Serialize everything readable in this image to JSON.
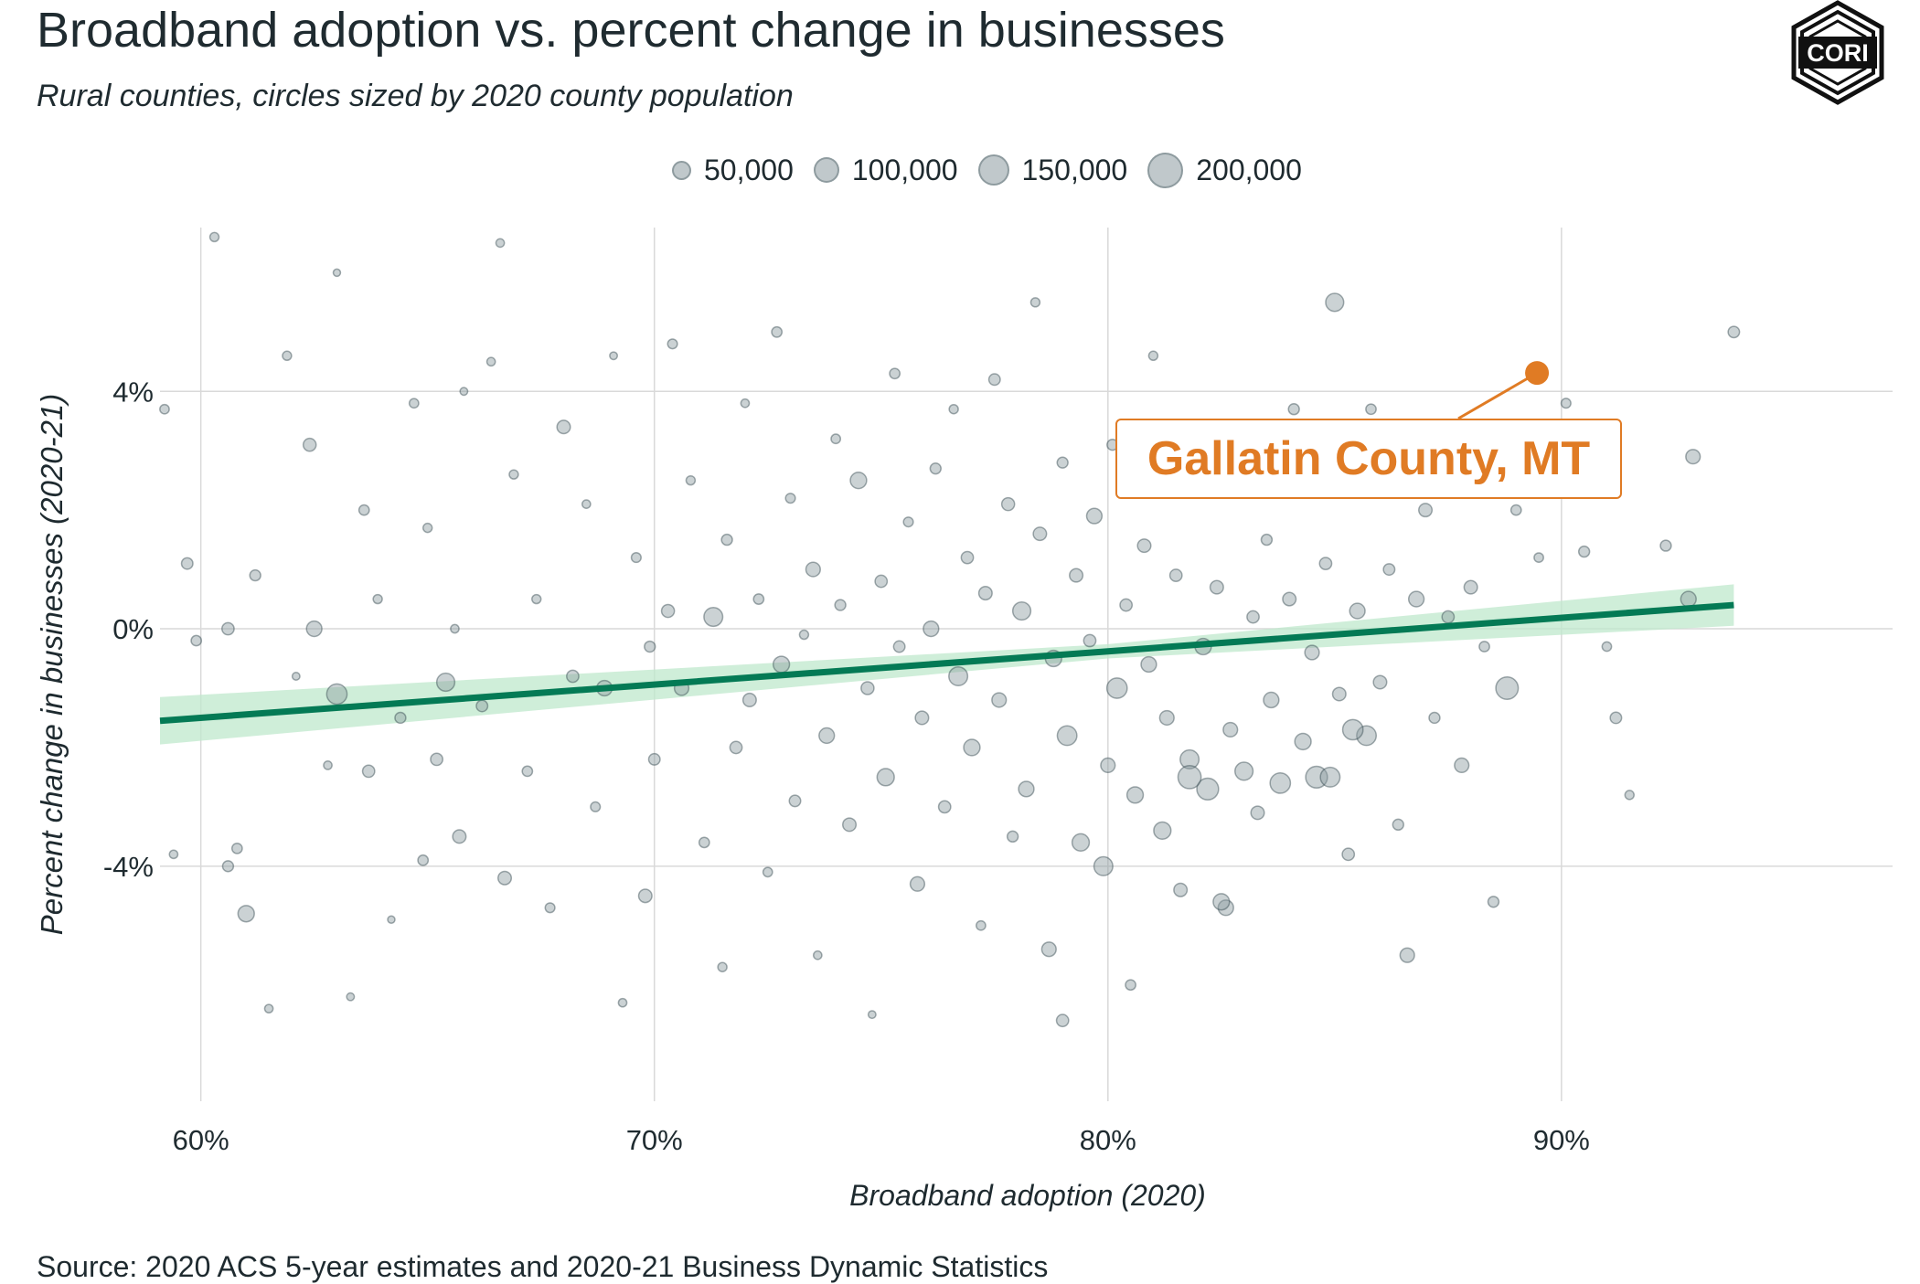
{
  "title": "Broadband adoption vs. percent change in businesses",
  "subtitle": "Rural counties, circles sized by 2020 county population",
  "source": "Source: 2020 ACS 5-year estimates and 2020-21 Business Dynamic Statistics",
  "logo_text": "CORI",
  "legend": {
    "items": [
      {
        "label": "50,000",
        "value": 50000
      },
      {
        "label": "100,000",
        "value": 100000
      },
      {
        "label": "150,000",
        "value": 150000
      },
      {
        "label": "200,000",
        "value": 200000
      }
    ]
  },
  "annotation": {
    "label": "Gallatin County, MT",
    "x": 89.46,
    "y": 4.31
  },
  "colors": {
    "point_fill": "#8c9ba0",
    "point_stroke": "#33464e",
    "trend": "#047a55",
    "band": "#bfe8cc",
    "highlight": "#e07b24",
    "grid": "#d9d9d9"
  },
  "chart_data": {
    "type": "scatter",
    "title": "Broadband adoption vs. percent change in businesses",
    "subtitle": "Rural counties, circles sized by 2020 county population",
    "xlabel": "Broadband adoption (2020)",
    "ylabel": "Percent change in businesses (2020-21)",
    "xlim": [
      59.1,
      97.3
    ],
    "ylim": [
      -7.96,
      6.76
    ],
    "x_ticks": [
      {
        "value": 60,
        "label": "60%"
      },
      {
        "value": 70,
        "label": "70%"
      },
      {
        "value": 80,
        "label": "80%"
      },
      {
        "value": 90,
        "label": "90%"
      }
    ],
    "y_ticks": [
      {
        "value": -4,
        "label": "-4%"
      },
      {
        "value": 0,
        "label": "0%"
      },
      {
        "value": 4,
        "label": "4%"
      }
    ],
    "grid": true,
    "legend_placement": "top-center",
    "size_variable": "2020 county population",
    "trend": {
      "x": [
        59.1,
        80,
        93.8
      ],
      "y": [
        -1.55,
        -0.38,
        0.4
      ],
      "ci_low": [
        -1.95,
        -0.5,
        0.05
      ],
      "ci_high": [
        -1.15,
        -0.26,
        0.75
      ]
    },
    "points_fields": [
      "x",
      "y",
      "population"
    ],
    "points": [
      [
        59.2,
        3.7,
        15000
      ],
      [
        59.4,
        -3.8,
        12000
      ],
      [
        59.7,
        1.1,
        22000
      ],
      [
        59.9,
        -0.2,
        18000
      ],
      [
        60.3,
        6.6,
        14000
      ],
      [
        60.6,
        -4.0,
        20000
      ],
      [
        60.6,
        0,
        25000
      ],
      [
        60.8,
        -3.7,
        18000
      ],
      [
        61.0,
        -4.8,
        45000
      ],
      [
        61.2,
        0.9,
        20000
      ],
      [
        61.5,
        -6.4,
        12000
      ],
      [
        61.9,
        4.6,
        14000
      ],
      [
        62.1,
        -0.8,
        10000
      ],
      [
        62.4,
        3.1,
        28000
      ],
      [
        62.5,
        0,
        40000
      ],
      [
        62.8,
        -2.3,
        12000
      ],
      [
        63.0,
        6.0,
        9000
      ],
      [
        63.0,
        -1.1,
        70000
      ],
      [
        63.3,
        -6.2,
        10000
      ],
      [
        63.6,
        2.0,
        18000
      ],
      [
        63.7,
        -2.4,
        25000
      ],
      [
        63.9,
        0.5,
        14000
      ],
      [
        64.2,
        -4.9,
        9000
      ],
      [
        64.4,
        -1.5,
        20000
      ],
      [
        64.7,
        3.8,
        15000
      ],
      [
        64.9,
        -3.9,
        18000
      ],
      [
        65.0,
        1.7,
        14000
      ],
      [
        65.2,
        -2.2,
        25000
      ],
      [
        65.4,
        -0.9,
        55000
      ],
      [
        65.6,
        0.0,
        12000
      ],
      [
        65.7,
        -3.5,
        30000
      ],
      [
        65.8,
        4.0,
        10000
      ],
      [
        66.2,
        -1.3,
        22000
      ],
      [
        66.4,
        4.5,
        12000
      ],
      [
        66.6,
        6.5,
        12000
      ],
      [
        66.7,
        -4.2,
        30000
      ],
      [
        66.9,
        2.6,
        14000
      ],
      [
        67.2,
        -2.4,
        18000
      ],
      [
        67.4,
        0.5,
        14000
      ],
      [
        67.7,
        -4.7,
        16000
      ],
      [
        68.0,
        3.4,
        30000
      ],
      [
        68.2,
        -0.8,
        25000
      ],
      [
        68.5,
        2.1,
        12000
      ],
      [
        68.7,
        -3.0,
        16000
      ],
      [
        68.9,
        -1.0,
        40000
      ],
      [
        69.1,
        4.6,
        10000
      ],
      [
        69.3,
        -6.3,
        12000
      ],
      [
        69.6,
        1.2,
        16000
      ],
      [
        69.8,
        -4.5,
        30000
      ],
      [
        69.9,
        -0.3,
        20000
      ],
      [
        70.0,
        -2.2,
        22000
      ],
      [
        70.3,
        0.3,
        28000
      ],
      [
        70.4,
        4.8,
        16000
      ],
      [
        70.6,
        -1.0,
        35000
      ],
      [
        70.8,
        2.5,
        14000
      ],
      [
        71.1,
        -3.6,
        18000
      ],
      [
        71.3,
        0.2,
        60000
      ],
      [
        71.5,
        -5.7,
        14000
      ],
      [
        71.6,
        1.5,
        20000
      ],
      [
        71.8,
        -2.0,
        25000
      ],
      [
        72.0,
        3.8,
        12000
      ],
      [
        72.1,
        -1.2,
        30000
      ],
      [
        72.3,
        0.5,
        18000
      ],
      [
        72.5,
        -4.1,
        15000
      ],
      [
        72.7,
        5.0,
        18000
      ],
      [
        72.8,
        -0.6,
        45000
      ],
      [
        73.0,
        2.2,
        16000
      ],
      [
        73.1,
        -2.9,
        22000
      ],
      [
        73.3,
        -0.1,
        14000
      ],
      [
        73.5,
        1.0,
        35000
      ],
      [
        73.6,
        -5.5,
        12000
      ],
      [
        73.8,
        -1.8,
        40000
      ],
      [
        74.0,
        3.2,
        15000
      ],
      [
        74.1,
        0.4,
        20000
      ],
      [
        74.3,
        -3.3,
        30000
      ],
      [
        74.5,
        2.5,
        45000
      ],
      [
        74.7,
        -1.0,
        28000
      ],
      [
        74.8,
        -6.5,
        10000
      ],
      [
        75.0,
        0.8,
        25000
      ],
      [
        75.1,
        -2.5,
        50000
      ],
      [
        75.3,
        4.3,
        18000
      ],
      [
        75.4,
        -0.3,
        22000
      ],
      [
        75.6,
        1.8,
        16000
      ],
      [
        75.8,
        -4.3,
        35000
      ],
      [
        75.9,
        -1.5,
        30000
      ],
      [
        76.1,
        0.0,
        40000
      ],
      [
        76.2,
        2.7,
        20000
      ],
      [
        76.4,
        -3.0,
        25000
      ],
      [
        76.6,
        3.7,
        14000
      ],
      [
        76.7,
        -0.8,
        60000
      ],
      [
        76.9,
        1.2,
        25000
      ],
      [
        77.0,
        -2.0,
        45000
      ],
      [
        77.2,
        -5.0,
        15000
      ],
      [
        77.3,
        0.6,
        30000
      ],
      [
        77.5,
        4.2,
        22000
      ],
      [
        77.6,
        -1.2,
        35000
      ],
      [
        77.8,
        2.1,
        28000
      ],
      [
        77.9,
        -3.5,
        20000
      ],
      [
        78.1,
        0.3,
        55000
      ],
      [
        78.2,
        -2.7,
        40000
      ],
      [
        78.4,
        5.5,
        14000
      ],
      [
        78.5,
        1.6,
        30000
      ],
      [
        78.7,
        -5.4,
        35000
      ],
      [
        78.8,
        -0.5,
        45000
      ],
      [
        79.0,
        2.8,
        20000
      ],
      [
        79.1,
        -1.8,
        65000
      ],
      [
        79.3,
        0.9,
        30000
      ],
      [
        79.4,
        -3.6,
        50000
      ],
      [
        79.6,
        -0.2,
        25000
      ],
      [
        79.7,
        1.9,
        40000
      ],
      [
        79.9,
        -4.0,
        60000
      ],
      [
        80.0,
        -2.3,
        35000
      ],
      [
        80.1,
        3.1,
        20000
      ],
      [
        80.2,
        -1.0,
        70000
      ],
      [
        80.4,
        0.4,
        25000
      ],
      [
        80.5,
        -6.0,
        18000
      ],
      [
        80.6,
        -2.8,
        45000
      ],
      [
        80.8,
        1.4,
        30000
      ],
      [
        80.9,
        -0.6,
        40000
      ],
      [
        81.0,
        4.6,
        14000
      ],
      [
        81.2,
        -3.4,
        50000
      ],
      [
        81.3,
        -1.5,
        35000
      ],
      [
        81.5,
        0.9,
        25000
      ],
      [
        81.6,
        -4.4,
        30000
      ],
      [
        81.8,
        -2.2,
        60000
      ],
      [
        81.9,
        2.3,
        20000
      ],
      [
        82.1,
        -0.3,
        45000
      ],
      [
        82.2,
        -2.7,
        80000
      ],
      [
        82.4,
        0.7,
        30000
      ],
      [
        82.6,
        -4.7,
        40000
      ],
      [
        82.7,
        -1.7,
        35000
      ],
      [
        82.9,
        3.3,
        18000
      ],
      [
        83.0,
        -2.4,
        55000
      ],
      [
        83.2,
        0.2,
        25000
      ],
      [
        83.3,
        -3.1,
        30000
      ],
      [
        83.5,
        1.5,
        20000
      ],
      [
        83.6,
        -1.2,
        40000
      ],
      [
        83.8,
        -2.6,
        70000
      ],
      [
        84.0,
        0.5,
        30000
      ],
      [
        84.1,
        3.7,
        20000
      ],
      [
        84.3,
        -1.9,
        45000
      ],
      [
        84.5,
        -0.4,
        35000
      ],
      [
        84.6,
        -2.5,
        80000
      ],
      [
        84.8,
        1.1,
        25000
      ],
      [
        85.0,
        5.5,
        55000
      ],
      [
        85.1,
        -1.1,
        30000
      ],
      [
        85.3,
        -3.8,
        25000
      ],
      [
        85.5,
        0.3,
        40000
      ],
      [
        85.7,
        -1.8,
        65000
      ],
      [
        85.8,
        3.7,
        18000
      ],
      [
        86.0,
        -0.9,
        30000
      ],
      [
        86.2,
        1.0,
        22000
      ],
      [
        86.4,
        -3.3,
        20000
      ],
      [
        86.6,
        -5.5,
        35000
      ],
      [
        86.8,
        0.5,
        40000
      ],
      [
        87.0,
        2.0,
        30000
      ],
      [
        87.2,
        -1.5,
        20000
      ],
      [
        87.5,
        0.2,
        25000
      ],
      [
        87.8,
        -2.3,
        35000
      ],
      [
        88.0,
        0.7,
        30000
      ],
      [
        88.3,
        -0.3,
        18000
      ],
      [
        88.5,
        -4.6,
        20000
      ],
      [
        88.8,
        -1.0,
        85000
      ],
      [
        89.0,
        2.0,
        18000
      ],
      [
        89.5,
        1.2,
        15000
      ],
      [
        90.1,
        3.8,
        16000
      ],
      [
        90.5,
        1.3,
        20000
      ],
      [
        91.0,
        -0.3,
        15000
      ],
      [
        91.2,
        -1.5,
        22000
      ],
      [
        91.5,
        -2.8,
        14000
      ],
      [
        92.3,
        1.4,
        20000
      ],
      [
        92.9,
        2.9,
        35000
      ],
      [
        93.8,
        5.0,
        22000
      ],
      [
        92.8,
        0.5,
        40000
      ],
      [
        85.4,
        -1.7,
        70000
      ],
      [
        79.0,
        -6.6,
        25000
      ],
      [
        81.8,
        -2.5,
        90000
      ],
      [
        84.9,
        -2.5,
        65000
      ],
      [
        82.5,
        -4.6,
        45000
      ]
    ]
  }
}
